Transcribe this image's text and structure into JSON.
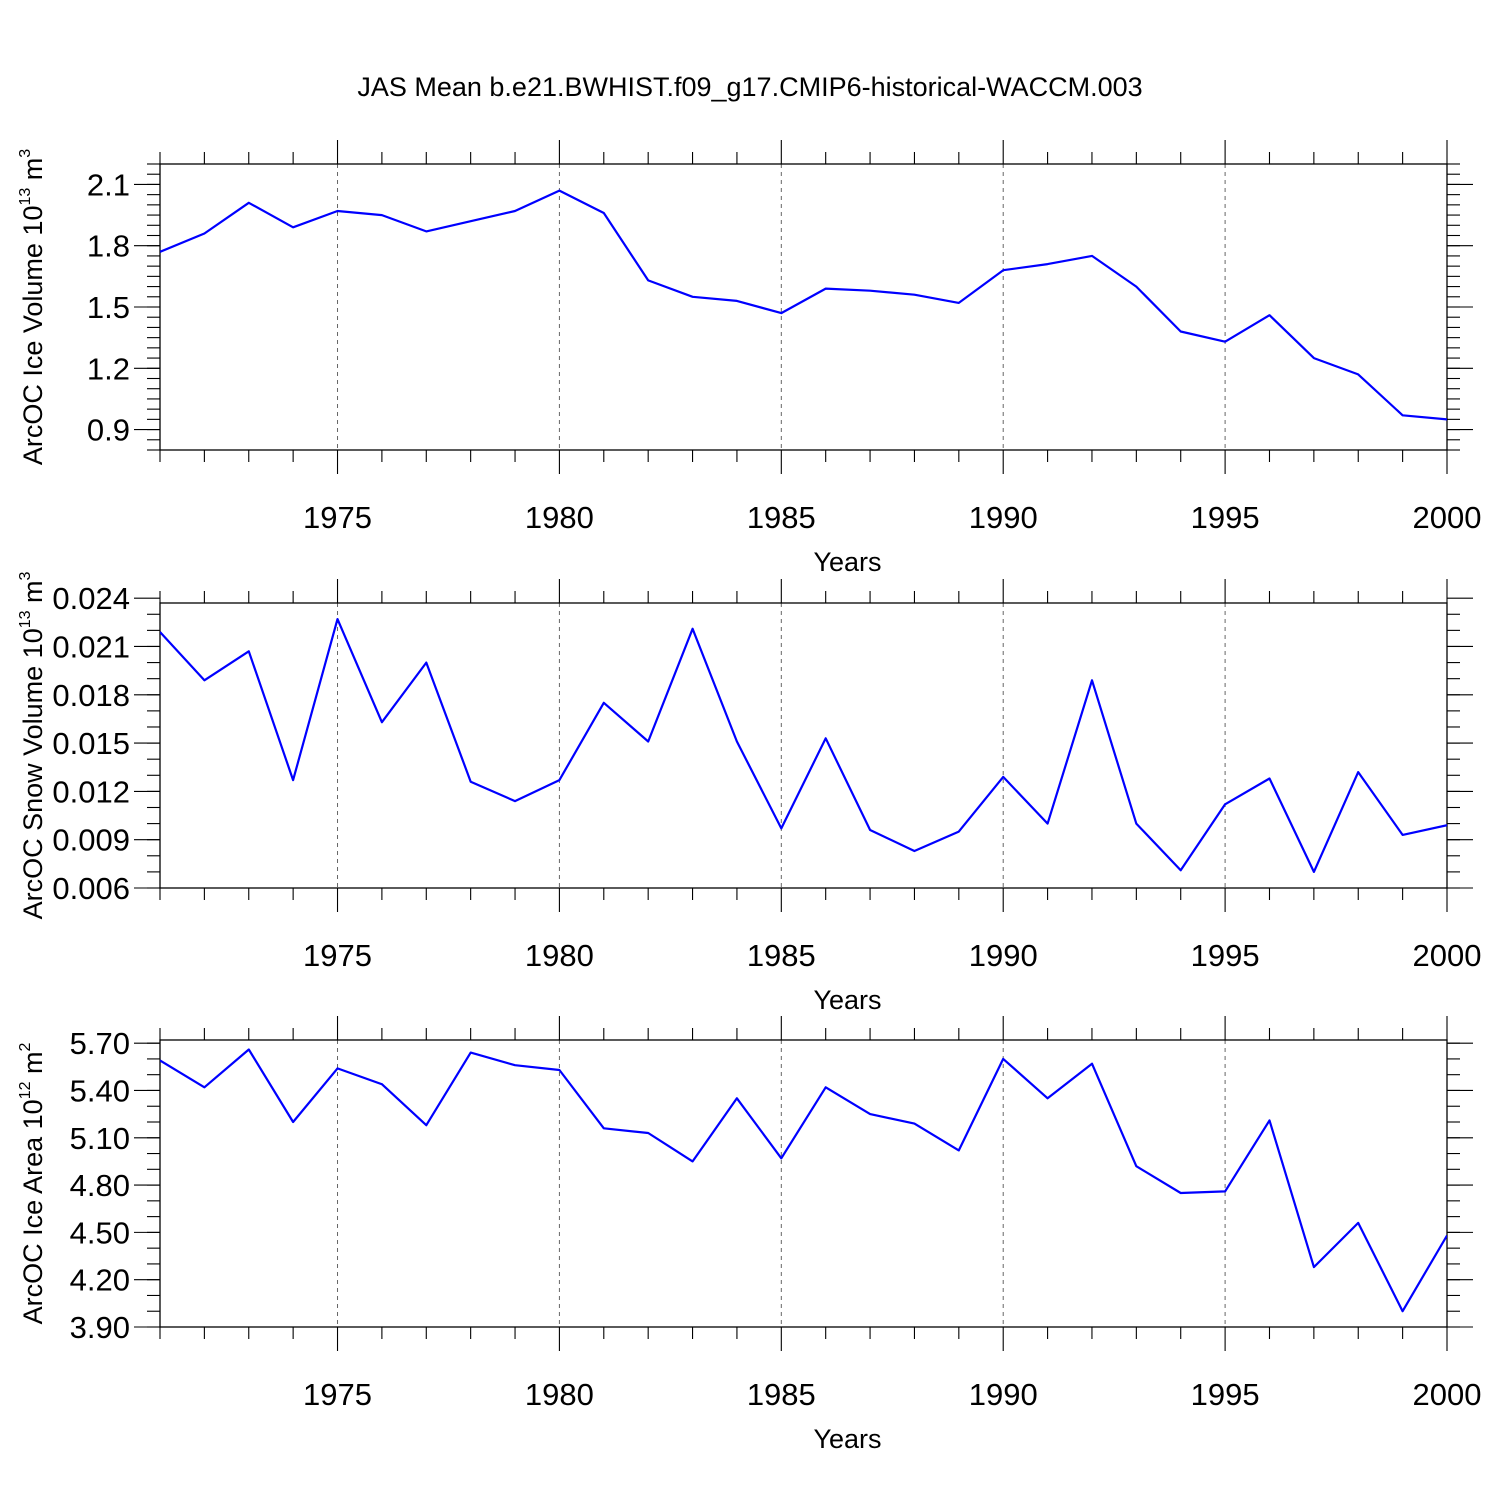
{
  "title": "JAS Mean b.e21.BWHIST.f09_g17.CMIP6-historical-WACCM.003",
  "chart_data": [
    {
      "type": "line",
      "name": "ice-volume",
      "title": "JAS Mean b.e21.BWHIST.f09_g17.CMIP6-historical-WACCM.003",
      "xlabel": "Years",
      "ylabel": {
        "text": "ArcOC Ice Volume 10",
        "sup": "13",
        "unit": " m",
        "unit_sup": "3"
      },
      "xlim": [
        1971,
        2000
      ],
      "ylim": [
        0.8,
        2.2
      ],
      "x_major_ticks": [
        1975,
        1980,
        1985,
        1990,
        1995,
        2000
      ],
      "x_tick_labels": [
        "1975",
        "1980",
        "1985",
        "1990",
        "1995",
        "2000"
      ],
      "y_major_ticks": [
        0.9,
        1.2,
        1.5,
        1.8,
        2.1
      ],
      "y_tick_labels": [
        "0.9",
        "1.2",
        "1.5",
        "1.8",
        "2.1"
      ],
      "y_minor_step": 0.05,
      "grid_x": true,
      "color": "#0000ff",
      "x": [
        1971,
        1972,
        1973,
        1974,
        1975,
        1976,
        1977,
        1978,
        1979,
        1980,
        1981,
        1982,
        1983,
        1984,
        1985,
        1986,
        1987,
        1988,
        1989,
        1990,
        1991,
        1992,
        1993,
        1994,
        1995,
        1996,
        1997,
        1998,
        1999,
        2000
      ],
      "values": [
        1.77,
        1.86,
        2.01,
        1.89,
        1.97,
        1.95,
        1.87,
        1.92,
        1.97,
        2.07,
        1.96,
        1.63,
        1.55,
        1.53,
        1.47,
        1.59,
        1.58,
        1.56,
        1.52,
        1.68,
        1.71,
        1.75,
        1.6,
        1.38,
        1.33,
        1.46,
        1.25,
        1.17,
        0.97,
        0.95
      ]
    },
    {
      "type": "line",
      "name": "snow-volume",
      "xlabel": "Years",
      "ylabel": {
        "text": "ArcOC Snow Volume 10",
        "sup": "13",
        "unit": " m",
        "unit_sup": "3"
      },
      "xlim": [
        1971,
        2000
      ],
      "ylim": [
        0.006,
        0.0237
      ],
      "x_major_ticks": [
        1975,
        1980,
        1985,
        1990,
        1995,
        2000
      ],
      "x_tick_labels": [
        "1975",
        "1980",
        "1985",
        "1990",
        "1995",
        "2000"
      ],
      "y_major_ticks": [
        0.006,
        0.009,
        0.012,
        0.015,
        0.018,
        0.021,
        0.024
      ],
      "y_tick_labels": [
        "0.006",
        "0.009",
        "0.012",
        "0.015",
        "0.018",
        "0.021",
        "0.024"
      ],
      "y_minor_step": 0.001,
      "grid_x": true,
      "color": "#0000ff",
      "x": [
        1971,
        1972,
        1973,
        1974,
        1975,
        1976,
        1977,
        1978,
        1979,
        1980,
        1981,
        1982,
        1983,
        1984,
        1985,
        1986,
        1987,
        1988,
        1989,
        1990,
        1991,
        1992,
        1993,
        1994,
        1995,
        1996,
        1997,
        1998,
        1999,
        2000
      ],
      "values": [
        0.0219,
        0.0189,
        0.0207,
        0.0127,
        0.0227,
        0.0163,
        0.02,
        0.0126,
        0.0114,
        0.0127,
        0.0175,
        0.0151,
        0.0221,
        0.0151,
        0.0097,
        0.0153,
        0.0096,
        0.0083,
        0.0095,
        0.0129,
        0.01,
        0.0189,
        0.01,
        0.0071,
        0.0112,
        0.0128,
        0.007,
        0.0132,
        0.0093,
        0.0099
      ]
    },
    {
      "type": "line",
      "name": "ice-area",
      "xlabel": "Years",
      "ylabel": {
        "text": "ArcOC Ice Area 10",
        "sup": "12",
        "unit": " m",
        "unit_sup": "2"
      },
      "xlim": [
        1971,
        2000
      ],
      "ylim": [
        3.9,
        5.72
      ],
      "x_major_ticks": [
        1975,
        1980,
        1985,
        1990,
        1995,
        2000
      ],
      "x_tick_labels": [
        "1975",
        "1980",
        "1985",
        "1990",
        "1995",
        "2000"
      ],
      "y_major_ticks": [
        3.9,
        4.2,
        4.5,
        4.8,
        5.1,
        5.4,
        5.7
      ],
      "y_tick_labels": [
        "3.90",
        "4.20",
        "4.50",
        "4.80",
        "5.10",
        "5.40",
        "5.70"
      ],
      "y_minor_step": 0.1,
      "grid_x": true,
      "color": "#0000ff",
      "x": [
        1971,
        1972,
        1973,
        1974,
        1975,
        1976,
        1977,
        1978,
        1979,
        1980,
        1981,
        1982,
        1983,
        1984,
        1985,
        1986,
        1987,
        1988,
        1989,
        1990,
        1991,
        1992,
        1993,
        1994,
        1995,
        1996,
        1997,
        1998,
        1999,
        2000
      ],
      "values": [
        5.59,
        5.42,
        5.66,
        5.2,
        5.54,
        5.44,
        5.18,
        5.64,
        5.56,
        5.53,
        5.16,
        5.13,
        4.95,
        5.35,
        4.97,
        5.42,
        5.25,
        5.19,
        5.02,
        5.6,
        5.35,
        5.57,
        4.92,
        4.75,
        4.76,
        5.21,
        4.28,
        4.56,
        4.0,
        4.48
      ]
    }
  ]
}
